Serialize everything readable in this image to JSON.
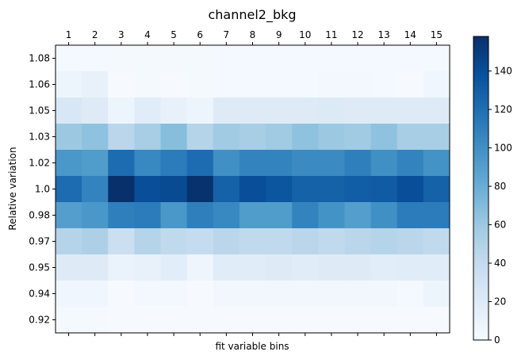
{
  "chart_data": {
    "type": "heatmap",
    "title": "channel2_bkg",
    "xlabel": "fit variable bins",
    "ylabel": "Relative variation",
    "x_categories": [
      "1",
      "2",
      "3",
      "4",
      "5",
      "6",
      "7",
      "8",
      "9",
      "10",
      "11",
      "12",
      "13",
      "14",
      "15"
    ],
    "y_categories": [
      "1.08",
      "1.06",
      "1.05",
      "1.03",
      "1.02",
      "1.0",
      "0.98",
      "0.97",
      "0.95",
      "0.94",
      "0.92"
    ],
    "values": [
      [
        3,
        3,
        2,
        2,
        2,
        2,
        3,
        3,
        3,
        3,
        3,
        3,
        3,
        3,
        3
      ],
      [
        8,
        12,
        1,
        2,
        1,
        2,
        3,
        3,
        3,
        3,
        4,
        4,
        3,
        1,
        6
      ],
      [
        25,
        20,
        8,
        18,
        12,
        8,
        20,
        20,
        20,
        20,
        21,
        20,
        20,
        20,
        20
      ],
      [
        60,
        65,
        45,
        55,
        68,
        48,
        58,
        55,
        58,
        65,
        60,
        58,
        65,
        55,
        55
      ],
      [
        95,
        92,
        122,
        105,
        112,
        122,
        100,
        108,
        108,
        103,
        103,
        110,
        100,
        108,
        98
      ],
      [
        122,
        108,
        158,
        140,
        142,
        157,
        128,
        140,
        135,
        128,
        128,
        130,
        132,
        140,
        128
      ],
      [
        90,
        95,
        110,
        112,
        95,
        110,
        105,
        92,
        92,
        108,
        98,
        90,
        100,
        112,
        112
      ],
      [
        48,
        52,
        35,
        48,
        42,
        40,
        45,
        42,
        42,
        45,
        42,
        45,
        48,
        45,
        42
      ],
      [
        20,
        20,
        10,
        12,
        17,
        7,
        18,
        18,
        20,
        18,
        20,
        20,
        17,
        18,
        18
      ],
      [
        6,
        6,
        1,
        4,
        4,
        1,
        5,
        5,
        5,
        5,
        5,
        5,
        5,
        3,
        8
      ],
      [
        2,
        2,
        1,
        1,
        1,
        1,
        1,
        1,
        1,
        1,
        1,
        1,
        1,
        1,
        1
      ]
    ],
    "colormap": "Blues",
    "colorbar": {
      "min": 0,
      "max": 158,
      "ticks": [
        "0",
        "20",
        "40",
        "60",
        "80",
        "100",
        "120",
        "140"
      ]
    },
    "x_ticks_position": "top"
  }
}
